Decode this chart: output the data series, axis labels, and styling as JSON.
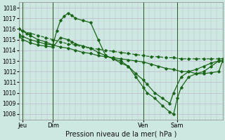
{
  "background_color": "#cce8e0",
  "grid_color": "#c0b8d0",
  "line_color": "#1a6618",
  "title": "Pression niveau de la mer( hPa )",
  "ylabel_ticks": [
    1008,
    1009,
    1010,
    1011,
    1012,
    1013,
    1014,
    1015,
    1016,
    1017,
    1018
  ],
  "ylim": [
    1007.5,
    1018.5
  ],
  "xlim": [
    0,
    108
  ],
  "x_ticks": [
    2,
    18,
    66,
    84
  ],
  "x_labels": [
    "Jeu",
    "Dim",
    "Ven",
    "Sam"
  ],
  "vlines": [
    2,
    18,
    66,
    84
  ],
  "line1_dash": {
    "x": [
      0,
      2,
      6,
      10,
      14,
      18,
      22,
      26,
      30,
      34,
      38,
      42,
      46,
      50,
      54,
      58,
      62,
      66,
      70,
      74,
      78,
      82,
      86,
      90,
      94,
      98,
      102,
      106,
      108
    ],
    "y": [
      1016.0,
      1015.8,
      1015.6,
      1015.4,
      1015.2,
      1015.0,
      1014.8,
      1014.6,
      1014.5,
      1014.3,
      1014.2,
      1014.1,
      1014.0,
      1013.9,
      1013.8,
      1013.7,
      1013.6,
      1013.5,
      1013.4,
      1013.4,
      1013.3,
      1013.3,
      1013.2,
      1013.2,
      1013.2,
      1013.2,
      1013.2,
      1013.2,
      1013.2
    ]
  },
  "line2_solid_flat": {
    "x": [
      0,
      2,
      6,
      10,
      14,
      18,
      22,
      26,
      30,
      34,
      38,
      42,
      46,
      50,
      54,
      58,
      62,
      66,
      70,
      74,
      78,
      82,
      86,
      90,
      94,
      98,
      102,
      106,
      108
    ],
    "y": [
      1015.5,
      1015.3,
      1015.0,
      1014.8,
      1014.6,
      1014.5,
      1014.3,
      1014.2,
      1014.0,
      1013.8,
      1013.7,
      1013.5,
      1013.4,
      1013.3,
      1013.2,
      1013.1,
      1013.0,
      1012.9,
      1012.7,
      1012.5,
      1012.3,
      1012.2,
      1012.0,
      1012.0,
      1011.8,
      1011.8,
      1011.9,
      1012.0,
      1013.0
    ]
  },
  "line3_solid_medium": {
    "x": [
      0,
      2,
      6,
      10,
      14,
      18,
      22,
      26,
      28,
      30,
      34,
      38,
      42,
      46,
      50,
      54,
      58,
      62,
      66,
      68,
      72,
      76,
      80,
      82,
      86,
      90,
      94,
      98,
      102,
      106,
      108
    ],
    "y": [
      1015.3,
      1015.0,
      1014.7,
      1014.5,
      1014.4,
      1014.3,
      1015.2,
      1015.0,
      1014.8,
      1014.6,
      1014.4,
      1014.2,
      1013.8,
      1013.5,
      1013.2,
      1012.8,
      1012.5,
      1011.8,
      1011.2,
      1010.8,
      1010.0,
      1009.5,
      1009.0,
      1010.0,
      1011.5,
      1012.0,
      1012.2,
      1012.5,
      1012.8,
      1013.0,
      1013.0
    ]
  },
  "line4_solid_steep": {
    "x": [
      0,
      2,
      4,
      6,
      10,
      14,
      18,
      20,
      22,
      24,
      26,
      28,
      30,
      34,
      38,
      42,
      46,
      50,
      54,
      58,
      62,
      66,
      68,
      72,
      76,
      80,
      82,
      84,
      86,
      90,
      94,
      98,
      102,
      106,
      108
    ],
    "y": [
      1016.0,
      1015.8,
      1015.6,
      1015.4,
      1015.0,
      1014.8,
      1014.5,
      1015.8,
      1016.8,
      1017.2,
      1017.5,
      1017.3,
      1017.0,
      1016.8,
      1016.6,
      1015.0,
      1013.5,
      1013.2,
      1013.0,
      1012.5,
      1011.5,
      1010.5,
      1010.0,
      1009.5,
      1008.8,
      1008.2,
      1008.0,
      1009.5,
      1010.5,
      1011.5,
      1011.8,
      1012.0,
      1012.5,
      1013.0,
      1013.0
    ]
  }
}
